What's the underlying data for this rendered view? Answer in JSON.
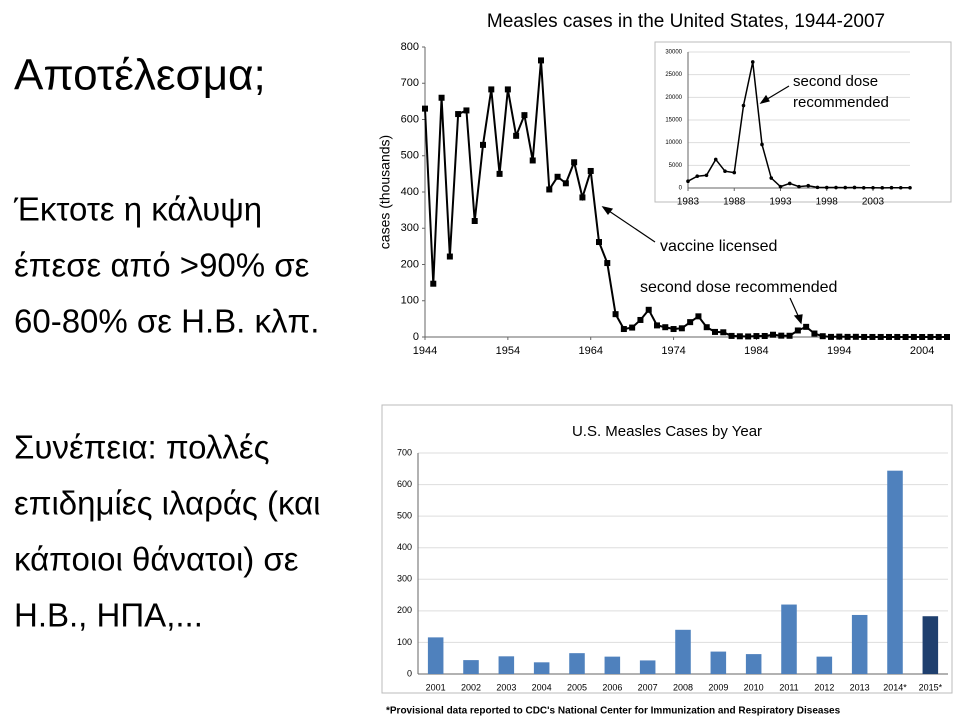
{
  "slide": {
    "title": "Αποτέλεσμα;",
    "paragraph_1": [
      "Έκτοτε η κάλυψη",
      "έπεσε από >90% σε",
      "60-80% σε Η.Β. κλπ."
    ],
    "paragraph_2": [
      "Συνέπεια: πολλές",
      "επιδημίες ιλαράς (και",
      "κάποιοι θάνατοι) σε",
      "Η.Β., ΗΠΑ,..."
    ]
  },
  "chart_data": [
    {
      "type": "line",
      "title": "Measles cases in the United States, 1944-2007",
      "ylabel": "cases (thousands)",
      "x": [
        1944,
        1945,
        1946,
        1947,
        1948,
        1949,
        1950,
        1951,
        1952,
        1953,
        1954,
        1955,
        1956,
        1957,
        1958,
        1959,
        1960,
        1961,
        1962,
        1963,
        1964,
        1965,
        1966,
        1967,
        1968,
        1969,
        1970,
        1971,
        1972,
        1973,
        1974,
        1975,
        1976,
        1977,
        1978,
        1979,
        1980,
        1981,
        1982,
        1983,
        1984,
        1985,
        1986,
        1987,
        1988,
        1989,
        1990,
        1991,
        1992,
        1993,
        1994,
        1995,
        1996,
        1997,
        1998,
        1999,
        2000,
        2001,
        2002,
        2003,
        2004,
        2005,
        2006,
        2007
      ],
      "values": [
        630,
        147,
        660,
        222,
        615,
        625,
        320,
        530,
        683,
        450,
        683,
        555,
        612,
        487,
        763,
        407,
        442,
        424,
        482,
        385,
        458,
        262,
        204,
        63,
        22,
        26,
        47,
        75,
        32,
        27,
        22,
        24,
        41,
        57,
        27,
        14,
        13,
        3,
        2,
        1.5,
        2.6,
        2.8,
        6.3,
        3.7,
        3.4,
        18,
        28,
        9.6,
        2.2,
        0.3,
        1,
        0.3,
        0.5,
        0.1,
        0.1,
        0.1,
        0.1,
        0.1,
        0,
        0.1,
        0,
        0.1,
        0.1,
        0
      ],
      "color": "#000000",
      "marker": "square",
      "xlim": [
        1944,
        2007
      ],
      "ylim": [
        0,
        800
      ],
      "xticks": [
        1944,
        1954,
        1964,
        1974,
        1984,
        1994,
        2004
      ],
      "yticks": [
        0,
        100,
        200,
        300,
        400,
        500,
        600,
        700,
        800
      ],
      "grid": false,
      "annotations": [
        "vaccine licensed",
        "second dose recommended"
      ]
    },
    {
      "type": "line",
      "x": [
        1983,
        1984,
        1985,
        1986,
        1987,
        1988,
        1989,
        1990,
        1991,
        1992,
        1993,
        1994,
        1995,
        1996,
        1997,
        1998,
        1999,
        2000,
        2001,
        2002,
        2003,
        2004,
        2005,
        2006,
        2007
      ],
      "values": [
        1500,
        2600,
        2800,
        6300,
        3700,
        3400,
        18200,
        27800,
        9600,
        2200,
        300,
        1000,
        300,
        500,
        140,
        100,
        100,
        86,
        116,
        44,
        56,
        37,
        66,
        55,
        43
      ],
      "color": "#000000",
      "marker": "circle",
      "xlim": [
        1983,
        2007
      ],
      "ylim": [
        0,
        30000
      ],
      "xticks": [
        1983,
        1988,
        1993,
        1998,
        2003
      ],
      "yticks": [
        0,
        5000,
        10000,
        15000,
        20000,
        25000,
        30000
      ],
      "grid": true,
      "annotations": [
        "second dose",
        "recommended"
      ]
    },
    {
      "type": "bar",
      "title": "U.S. Measles Cases by Year",
      "categories": [
        "2001",
        "2002",
        "2003",
        "2004",
        "2005",
        "2006",
        "2007",
        "2008",
        "2009",
        "2010",
        "2011",
        "2012",
        "2013",
        "2014*",
        "2015*"
      ],
      "values": [
        116,
        44,
        56,
        37,
        66,
        55,
        43,
        140,
        71,
        63,
        220,
        55,
        187,
        644,
        183
      ],
      "colors": [
        "#4f81bd",
        "#4f81bd",
        "#4f81bd",
        "#4f81bd",
        "#4f81bd",
        "#4f81bd",
        "#4f81bd",
        "#4f81bd",
        "#4f81bd",
        "#4f81bd",
        "#4f81bd",
        "#4f81bd",
        "#4f81bd",
        "#4f81bd",
        "#1f3f6e"
      ],
      "ylim": [
        0,
        700
      ],
      "yticks": [
        0,
        100,
        200,
        300,
        400,
        500,
        600,
        700
      ],
      "grid": true,
      "footnote": "*Provisional data reported to CDC's National Center for Immunization and Respiratory Diseases"
    }
  ]
}
